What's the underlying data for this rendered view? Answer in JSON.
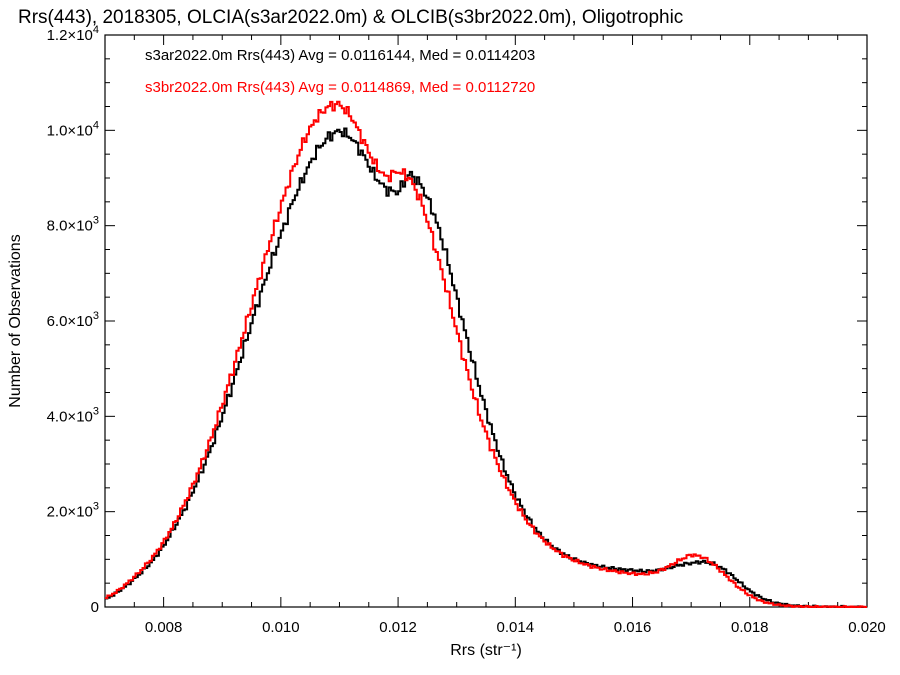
{
  "chart_data": {
    "type": "line",
    "title": "Rrs(443), 2018305, OLCIA(s3ar2022.0m) & OLCIB(s3br2022.0m), Oligotrophic",
    "xlabel": "Rrs (str⁻¹)",
    "ylabel": "Number of Observations",
    "xlim": [
      0.007,
      0.02
    ],
    "ylim": [
      0,
      12000
    ],
    "grid": false,
    "legend_position": "top-left",
    "x_ticks": [
      {
        "value": 0.008,
        "label": "0.008"
      },
      {
        "value": 0.01,
        "label": "0.010"
      },
      {
        "value": 0.012,
        "label": "0.012"
      },
      {
        "value": 0.014,
        "label": "0.014"
      },
      {
        "value": 0.016,
        "label": "0.016"
      },
      {
        "value": 0.018,
        "label": "0.018"
      },
      {
        "value": 0.02,
        "label": "0.020"
      }
    ],
    "y_ticks": [
      {
        "value": 0,
        "mantissa": "0",
        "exponent": ""
      },
      {
        "value": 2000,
        "mantissa": "2.0×10",
        "exponent": "3"
      },
      {
        "value": 4000,
        "mantissa": "4.0×10",
        "exponent": "3"
      },
      {
        "value": 6000,
        "mantissa": "6.0×10",
        "exponent": "3"
      },
      {
        "value": 8000,
        "mantissa": "8.0×10",
        "exponent": "3"
      },
      {
        "value": 10000,
        "mantissa": "1.0×10",
        "exponent": "4"
      },
      {
        "value": 12000,
        "mantissa": "1.2×10",
        "exponent": "4"
      }
    ],
    "series": [
      {
        "name": "s3ar2022.0m Rrs(443) Avg = 0.0116144, Med = 0.0114203",
        "color": "#000000",
        "points": [
          [
            0.007,
            150
          ],
          [
            0.0072,
            300
          ],
          [
            0.0074,
            480
          ],
          [
            0.0076,
            700
          ],
          [
            0.0078,
            950
          ],
          [
            0.008,
            1280
          ],
          [
            0.0082,
            1700
          ],
          [
            0.0084,
            2150
          ],
          [
            0.0086,
            2700
          ],
          [
            0.0088,
            3300
          ],
          [
            0.009,
            4000
          ],
          [
            0.0092,
            4750
          ],
          [
            0.0094,
            5550
          ],
          [
            0.0096,
            6350
          ],
          [
            0.0098,
            7100
          ],
          [
            0.01,
            7800
          ],
          [
            0.0102,
            8500
          ],
          [
            0.0104,
            9050
          ],
          [
            0.0106,
            9550
          ],
          [
            0.0108,
            9850
          ],
          [
            0.011,
            10000
          ],
          [
            0.0112,
            9850
          ],
          [
            0.0114,
            9500
          ],
          [
            0.0116,
            9050
          ],
          [
            0.0118,
            8750
          ],
          [
            0.012,
            8700
          ],
          [
            0.0122,
            9100
          ],
          [
            0.0124,
            8850
          ],
          [
            0.0126,
            8300
          ],
          [
            0.0128,
            7500
          ],
          [
            0.013,
            6500
          ],
          [
            0.0132,
            5500
          ],
          [
            0.0134,
            4550
          ],
          [
            0.0136,
            3700
          ],
          [
            0.0138,
            2950
          ],
          [
            0.014,
            2350
          ],
          [
            0.0142,
            1900
          ],
          [
            0.0144,
            1550
          ],
          [
            0.0146,
            1300
          ],
          [
            0.0148,
            1130
          ],
          [
            0.015,
            1000
          ],
          [
            0.0152,
            920
          ],
          [
            0.0154,
            860
          ],
          [
            0.0156,
            820
          ],
          [
            0.0158,
            790
          ],
          [
            0.016,
            770
          ],
          [
            0.0162,
            750
          ],
          [
            0.0164,
            760
          ],
          [
            0.0166,
            820
          ],
          [
            0.0168,
            880
          ],
          [
            0.017,
            920
          ],
          [
            0.0172,
            950
          ],
          [
            0.0174,
            900
          ],
          [
            0.0176,
            760
          ],
          [
            0.0178,
            550
          ],
          [
            0.018,
            340
          ],
          [
            0.0182,
            190
          ],
          [
            0.0184,
            100
          ],
          [
            0.0186,
            50
          ],
          [
            0.0188,
            25
          ],
          [
            0.019,
            12
          ],
          [
            0.0194,
            5
          ],
          [
            0.02,
            0
          ]
        ]
      },
      {
        "name": "s3br2022.0m Rrs(443) Avg = 0.0114869, Med = 0.0112720",
        "color": "#ff0000",
        "points": [
          [
            0.007,
            180
          ],
          [
            0.0072,
            320
          ],
          [
            0.0074,
            520
          ],
          [
            0.0076,
            750
          ],
          [
            0.0078,
            1020
          ],
          [
            0.008,
            1360
          ],
          [
            0.0082,
            1780
          ],
          [
            0.0084,
            2280
          ],
          [
            0.0086,
            2850
          ],
          [
            0.0088,
            3500
          ],
          [
            0.009,
            4250
          ],
          [
            0.0092,
            5050
          ],
          [
            0.0094,
            5900
          ],
          [
            0.0096,
            6750
          ],
          [
            0.0098,
            7600
          ],
          [
            0.01,
            8400
          ],
          [
            0.0102,
            9150
          ],
          [
            0.0104,
            9800
          ],
          [
            0.0106,
            10250
          ],
          [
            0.0108,
            10500
          ],
          [
            0.011,
            10550
          ],
          [
            0.0112,
            10300
          ],
          [
            0.0114,
            9800
          ],
          [
            0.0116,
            9300
          ],
          [
            0.0118,
            9000
          ],
          [
            0.012,
            9150
          ],
          [
            0.0122,
            9000
          ],
          [
            0.0124,
            8500
          ],
          [
            0.0126,
            7700
          ],
          [
            0.0128,
            6800
          ],
          [
            0.013,
            5800
          ],
          [
            0.0132,
            4850
          ],
          [
            0.0134,
            4000
          ],
          [
            0.0136,
            3300
          ],
          [
            0.0138,
            2700
          ],
          [
            0.014,
            2200
          ],
          [
            0.0142,
            1800
          ],
          [
            0.0144,
            1500
          ],
          [
            0.0146,
            1270
          ],
          [
            0.0148,
            1100
          ],
          [
            0.015,
            980
          ],
          [
            0.0152,
            890
          ],
          [
            0.0154,
            820
          ],
          [
            0.0156,
            770
          ],
          [
            0.0158,
            730
          ],
          [
            0.016,
            700
          ],
          [
            0.0162,
            690
          ],
          [
            0.0164,
            730
          ],
          [
            0.0166,
            840
          ],
          [
            0.0168,
            980
          ],
          [
            0.017,
            1100
          ],
          [
            0.0172,
            1050
          ],
          [
            0.0174,
            880
          ],
          [
            0.0176,
            650
          ],
          [
            0.0178,
            420
          ],
          [
            0.018,
            240
          ],
          [
            0.0182,
            120
          ],
          [
            0.0184,
            60
          ],
          [
            0.0186,
            28
          ],
          [
            0.0188,
            12
          ],
          [
            0.019,
            6
          ],
          [
            0.0194,
            2
          ],
          [
            0.02,
            0
          ]
        ]
      }
    ]
  }
}
